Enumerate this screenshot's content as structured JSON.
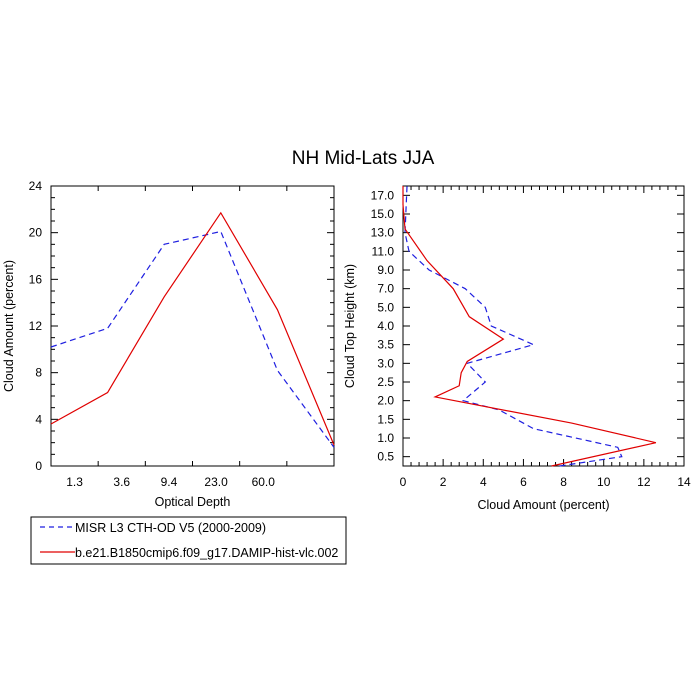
{
  "figure_title": "NH Mid-Lats JJA",
  "colors": {
    "misr": "#1f1fe0",
    "model": "#e00000"
  },
  "legend": {
    "entries": [
      {
        "label": "MISR L3 CTH-OD V5 (2000-2009)",
        "color": "#1f1fe0",
        "dash": true
      },
      {
        "label": "b.e21.B1850cmip6.f09_g17.DAMIP-hist-vlc.002",
        "color": "#e00000",
        "dash": false
      }
    ]
  },
  "chart_data": [
    {
      "type": "line",
      "title": "",
      "xlabel": "Optical Depth",
      "ylabel": "Cloud Amount (percent)",
      "x_tick_labels": [
        "1.3",
        "3.6",
        "9.4",
        "23.0",
        "60.0"
      ],
      "x_positions": [
        0,
        1,
        2,
        3,
        4,
        5,
        6
      ],
      "xlim": [
        0,
        6
      ],
      "ylim": [
        0,
        24
      ],
      "y_ticks": [
        "0",
        "4",
        "8",
        "12",
        "16",
        "20",
        "24"
      ],
      "series": [
        {
          "name": "MISR L3 CTH-OD V5 (2000-2009)",
          "values": [
            10.2,
            11.8,
            19.0,
            20.1,
            8.2,
            1.6
          ]
        },
        {
          "name": "b.e21.B1850cmip6.f09_g17.DAMIP-hist-vlc.002",
          "values": [
            3.6,
            6.3,
            14.5,
            21.7,
            13.4,
            1.8
          ]
        }
      ]
    },
    {
      "type": "line",
      "title": "",
      "xlabel": "Cloud Amount (percent)",
      "ylabel": "Cloud Top Height (km)",
      "xlim": [
        0,
        14
      ],
      "x_ticks": [
        "0",
        "2",
        "4",
        "6",
        "8",
        "10",
        "12",
        "14"
      ],
      "y_tick_labels": [
        "0.5",
        "1.0",
        "1.5",
        "2.0",
        "2.5",
        "3.0",
        "3.5",
        "4.0",
        "5.0",
        "7.0",
        "9.0",
        "11.0",
        "13.0",
        "15.0",
        "17.0"
      ],
      "ylim_index": [
        -0.5,
        14.5
      ],
      "series": [
        {
          "name": "MISR L3 CTH-OD V5 (2000-2009)",
          "x": [
            7.8,
            10.9,
            10.7,
            6.5,
            4.8,
            3.0,
            4.1,
            3.2,
            6.5,
            4.4,
            4.1,
            3.1,
            1.3,
            0.3,
            0.1,
            0.2
          ],
          "y_index": [
            -0.5,
            0,
            0.5,
            1.5,
            2.5,
            3,
            4,
            5,
            6,
            7,
            8,
            9,
            10,
            11,
            12,
            14.5
          ]
        },
        {
          "name": "b.e21.B1850cmip6.f09_g17.DAMIP-hist-vlc.002",
          "x": [
            7.4,
            12.6,
            8.4,
            1.6,
            2.8,
            2.9,
            3.2,
            5.0,
            3.3,
            2.5,
            1.2,
            0.1,
            0.0,
            0.0
          ],
          "y_index": [
            -0.5,
            0.75,
            1.8,
            3.2,
            3.8,
            4.5,
            5.1,
            6.3,
            7.5,
            9.0,
            10.5,
            12.2,
            13.5,
            14.5
          ]
        }
      ]
    }
  ]
}
